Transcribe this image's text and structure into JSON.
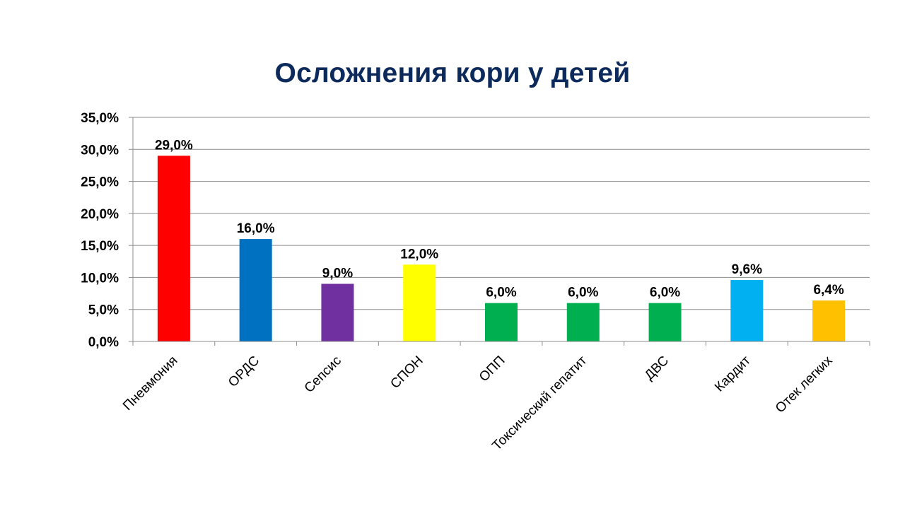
{
  "chart_data": {
    "type": "bar",
    "title": "Осложнения кори у детей",
    "xlabel": "",
    "ylabel": "",
    "ylim": [
      0,
      35
    ],
    "yticks": [
      "0,0%",
      "5,0%",
      "10,0%",
      "15,0%",
      "20,0%",
      "25,0%",
      "30,0%",
      "35,0%"
    ],
    "grid": true,
    "legend": "none",
    "categories": [
      "Пневмония",
      "ОРДС",
      "Сепсис",
      "СПОН",
      "ОПП",
      "Токсический гепатит",
      "ДВС",
      "Кардит",
      "Отек легких"
    ],
    "values": [
      29.0,
      16.0,
      9.0,
      12.0,
      6.0,
      6.0,
      6.0,
      9.6,
      6.4
    ],
    "data_labels": [
      "29,0%",
      "16,0%",
      "9,0%",
      "12,0%",
      "6,0%",
      "6,0%",
      "6,0%",
      "9,6%",
      "6,4%"
    ],
    "colors": [
      "#ff0000",
      "#0070c0",
      "#7030a0",
      "#ffff00",
      "#00b050",
      "#00b050",
      "#00b050",
      "#00b0f0",
      "#ffc000"
    ]
  }
}
